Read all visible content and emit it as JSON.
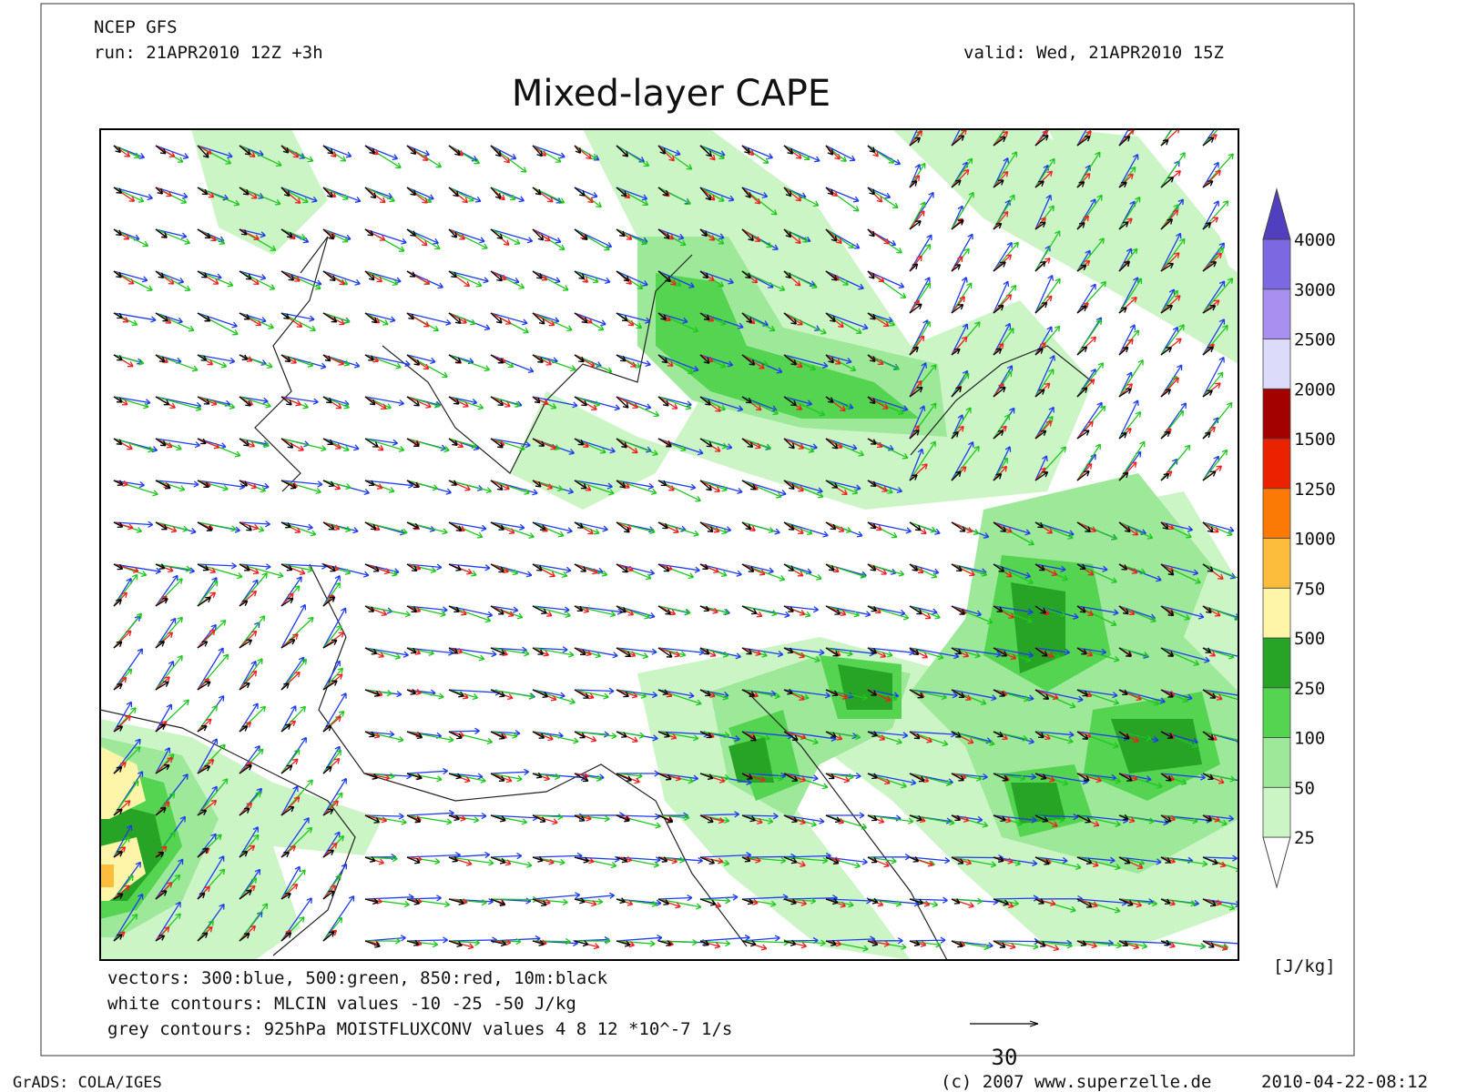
{
  "header": {
    "source": "NCEP GFS",
    "run": "run: 21APR2010 12Z +3h",
    "valid": "valid: Wed, 21APR2010 15Z",
    "title": "Mixed-layer CAPE"
  },
  "colorbar": {
    "levels": [
      25,
      50,
      100,
      250,
      500,
      750,
      1000,
      1250,
      1500,
      2000,
      2500,
      3000,
      4000
    ],
    "band_colors": [
      "#ccf5c6",
      "#9ee89a",
      "#55d452",
      "#27a325",
      "#fff5a8",
      "#fcbd3c",
      "#fb7a05",
      "#ea2200",
      "#a30000",
      "#dcdcfa",
      "#a890f0",
      "#7c68e0"
    ],
    "over_color": "#5040c0",
    "under_color": "#ffffff",
    "unit": "[J/kg]"
  },
  "notes": [
    "vectors: 300:blue, 500:green, 850:red, 10m:black",
    "white contours: MLCIN values -10 -25 -50 J/kg",
    "grey contours: 925hPa MOISTFLUXCONV values 4 8 12 *10^-7 1/s"
  ],
  "scale_label": "30",
  "footer": {
    "left": "GrADS: COLA/IGES",
    "center": "(c) 2007 www.superzelle.de",
    "right": "2010-04-22-08:12"
  }
}
